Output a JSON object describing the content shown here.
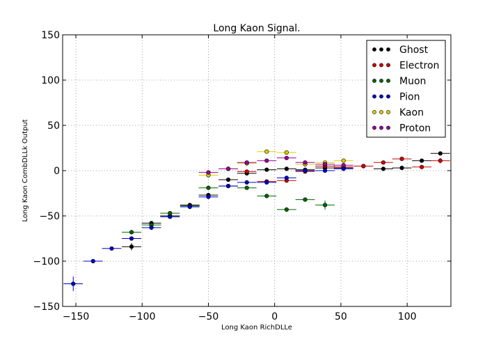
{
  "chart_data": {
    "type": "scatter",
    "title": "Long Kaon Signal.",
    "xlabel": "Long Kaon RichDLLe",
    "ylabel": "Long Kaon CombDLLk Output",
    "xlim": [
      -160,
      133
    ],
    "ylim": [
      -150,
      150
    ],
    "x_ticks": [
      -150,
      -100,
      -50,
      0,
      50,
      100
    ],
    "y_ticks": [
      -150,
      -100,
      -50,
      0,
      50,
      100,
      150
    ],
    "x_tick_labels": [
      "−150",
      "−100",
      "−50",
      "0",
      "50",
      "100"
    ],
    "y_tick_labels": [
      "−150",
      "−100",
      "−50",
      "0",
      "50",
      "100",
      "150"
    ],
    "grid": true,
    "legend_position": "top-right",
    "series": [
      {
        "name": "Ghost",
        "color": "#000000",
        "x": [
          -108,
          -93,
          -79,
          -64,
          -50,
          -35,
          -21,
          -6,
          9,
          23,
          38,
          52,
          67,
          82,
          96,
          111,
          125
        ],
        "y": [
          -84,
          -58,
          -50,
          -38,
          -27,
          -10,
          -3,
          1,
          2,
          1,
          3,
          3,
          5,
          2,
          3,
          11,
          19
        ],
        "xerr": 7.3,
        "yerr": [
          4,
          2,
          2,
          2,
          2,
          1,
          1,
          1,
          1,
          1,
          1,
          1,
          1,
          2,
          1,
          1,
          1
        ]
      },
      {
        "name": "Electron",
        "color": "#cc0000",
        "x": [
          -21,
          -6,
          9,
          23,
          38,
          52,
          67,
          82,
          96,
          111,
          125
        ],
        "y": [
          -1,
          -12,
          -11,
          -1,
          5,
          4,
          5,
          9,
          13,
          4,
          11
        ],
        "xerr": 7.3,
        "yerr": [
          1,
          1,
          1,
          1,
          1,
          1,
          1,
          1,
          1,
          1,
          3
        ]
      },
      {
        "name": "Muon",
        "color": "#006600",
        "x": [
          -108,
          -93,
          -79,
          -64,
          -50,
          -35,
          -21,
          -6,
          9,
          23,
          38
        ],
        "y": [
          -68,
          -60,
          -47,
          -39,
          -19,
          -17,
          -19,
          -28,
          -43,
          -32,
          -38
        ],
        "xerr": 7.3,
        "yerr": [
          2,
          2,
          2,
          2,
          1,
          1,
          1,
          1,
          2,
          2,
          5
        ]
      },
      {
        "name": "Pion",
        "color": "#0000cc",
        "x": [
          -152,
          -137,
          -123,
          -108,
          -93,
          -79,
          -64,
          -50,
          -35,
          -21,
          -6,
          9,
          23,
          38,
          52
        ],
        "y": [
          -125,
          -100,
          -86,
          -75,
          -63,
          -51,
          -40,
          -29,
          -17,
          -13,
          -13,
          -8,
          0,
          0,
          2
        ],
        "xerr": 7.3,
        "yerr": [
          8,
          2,
          1,
          1,
          1,
          1,
          1,
          1,
          1,
          1,
          1,
          1,
          1,
          1,
          1
        ]
      },
      {
        "name": "Kaon",
        "color": "#ddcc00",
        "x": [
          -50,
          -35,
          -21,
          -6,
          9,
          23,
          38,
          52
        ],
        "y": [
          -5,
          2,
          8,
          21,
          20,
          7,
          9,
          11
        ],
        "xerr": 7.3,
        "yerr": [
          1,
          1,
          1,
          1,
          1,
          1,
          1,
          1
        ]
      },
      {
        "name": "Proton",
        "color": "#990099",
        "x": [
          -50,
          -35,
          -21,
          -6,
          9,
          23,
          38,
          52
        ],
        "y": [
          -2,
          2,
          9,
          11,
          14,
          9,
          7,
          6
        ],
        "xerr": 7.3,
        "yerr": [
          1,
          1,
          1,
          1,
          1,
          1,
          1,
          1
        ]
      }
    ]
  }
}
